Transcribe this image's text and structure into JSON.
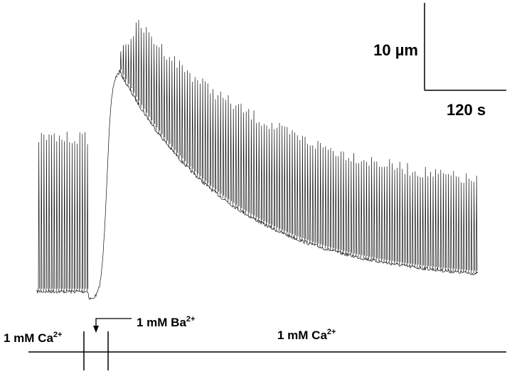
{
  "scale_bar": {
    "vertical": "10 µm",
    "horizontal": "120 s"
  },
  "solutions": [
    {
      "text": "1 mM Ca",
      "sup": "2+"
    },
    {
      "text": "1 mM Ba",
      "sup": "2+"
    },
    {
      "text": "1 mM Ca",
      "sup": "2+"
    }
  ]
}
